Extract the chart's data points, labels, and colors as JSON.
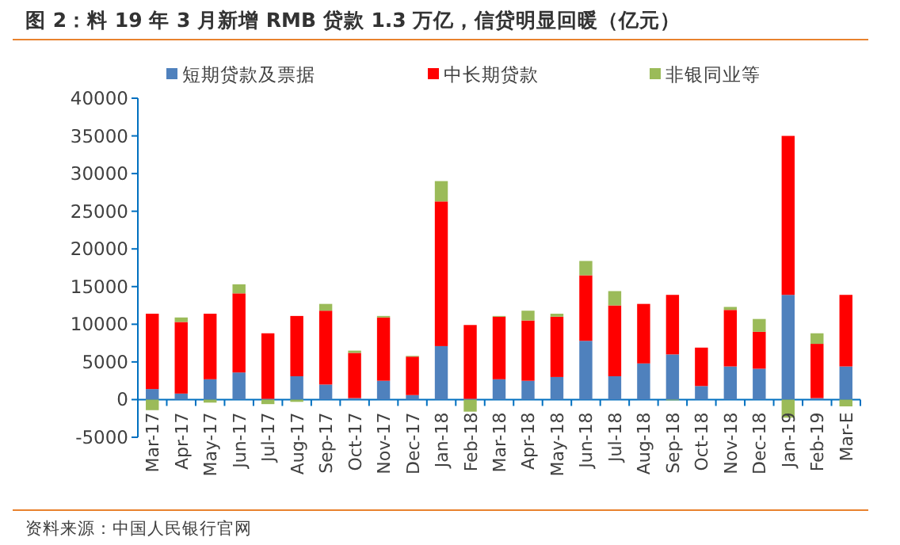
{
  "chart_data": {
    "type": "bar",
    "stacked": true,
    "title": "图 2：料 19 年 3 月新增 RMB 贷款 1.3 万亿，信贷明显回暖（亿元）",
    "categories": [
      "Mar-17",
      "Apr-17",
      "May-17",
      "Jun-17",
      "Jul-17",
      "Aug-17",
      "Sep-17",
      "Oct-17",
      "Nov-17",
      "Dec-17",
      "Jan-18",
      "Feb-18",
      "Mar-18",
      "Apr-18",
      "May-18",
      "Jun-18",
      "Jul-18",
      "Aug-18",
      "Sep-18",
      "Oct-18",
      "Nov-18",
      "Dec-18",
      "Jan-19",
      "Feb-19",
      "Mar-E"
    ],
    "series": [
      {
        "name": "短期贷款及票据",
        "color": "#4f81bd",
        "values": [
          1400,
          800,
          2700,
          3600,
          100,
          3100,
          2000,
          200,
          2500,
          600,
          7100,
          100,
          2700,
          2500,
          3000,
          7800,
          3100,
          4800,
          6000,
          1800,
          4400,
          4100,
          13900,
          200,
          4400
        ]
      },
      {
        "name": "中长期贷款",
        "color": "#ff0000",
        "values": [
          10000,
          9500,
          8700,
          10500,
          8700,
          8000,
          9800,
          6000,
          8400,
          5100,
          19200,
          9800,
          8300,
          8000,
          8000,
          8700,
          9400,
          7900,
          7900,
          5100,
          7500,
          4900,
          21100,
          7200,
          9500
        ]
      },
      {
        "name": "非银同业等",
        "color": "#9bbb59",
        "values": [
          -1400,
          600,
          -400,
          1200,
          -600,
          -300,
          900,
          300,
          200,
          100,
          2700,
          -1600,
          100,
          1300,
          400,
          1900,
          1900,
          0,
          -100,
          0,
          400,
          1700,
          -2400,
          1400,
          -900
        ]
      }
    ],
    "ylim": [
      -5000,
      40000
    ],
    "yticks": [
      -5000,
      0,
      5000,
      10000,
      15000,
      20000,
      25000,
      30000,
      35000,
      40000
    ],
    "grid": false,
    "legend": "top",
    "annotations": [
      "资料来源：中国人民银行官网"
    ]
  }
}
